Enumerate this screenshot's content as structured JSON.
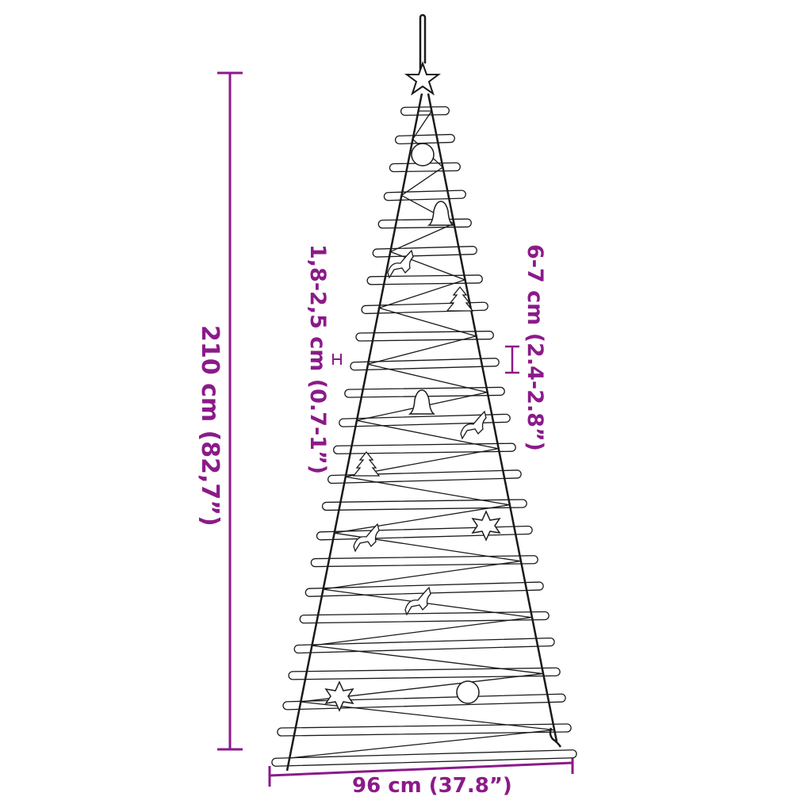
{
  "colors": {
    "dimension": "#8b1a89",
    "line": "#1a1a1a"
  },
  "dimensions": {
    "height": "210 cm (82,7”)",
    "width": "96 cm (37.8”)",
    "rod_diameter": "1,8-2,5 cm (0.7-1”)",
    "rod_spacing": "6-7 cm (2.4-2.8”)"
  },
  "ornaments": [
    "star-icon",
    "bauble-icon",
    "bell-icon",
    "reindeer-icon",
    "tree-icon",
    "unicorn-icon",
    "snowflake-icon"
  ]
}
